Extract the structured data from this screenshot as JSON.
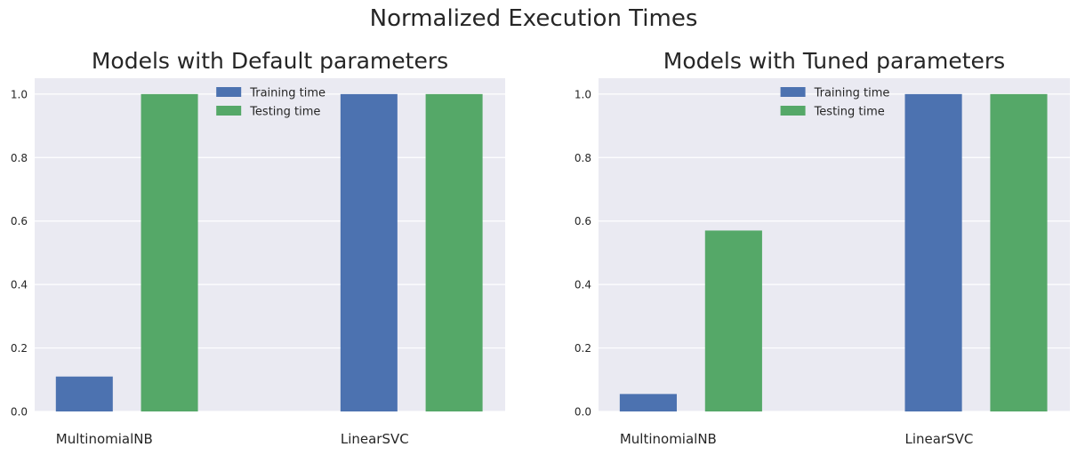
{
  "figure": {
    "title": "Normalized Execution Times"
  },
  "colors": {
    "training": "#4c72b0",
    "testing": "#55a868",
    "plot_bg": "#eaeaf2",
    "grid": "#ffffff",
    "text": "#262626"
  },
  "chart_data": [
    {
      "type": "bar",
      "title": "Models with Default parameters",
      "xlabel": "",
      "ylabel": "",
      "categories": [
        "MultinomialNB",
        "LinearSVC"
      ],
      "series": [
        {
          "name": "Training time",
          "color": "#4c72b0",
          "values": [
            0.11,
            1.0
          ]
        },
        {
          "name": "Testing time",
          "color": "#55a868",
          "values": [
            1.0,
            1.0
          ]
        }
      ],
      "ylim": [
        0,
        1.05
      ],
      "yticks": [
        "0.0",
        "0.2",
        "0.4",
        "0.6",
        "0.8",
        "1.0"
      ],
      "grid": true,
      "legend": "top-center"
    },
    {
      "type": "bar",
      "title": "Models with Tuned parameters",
      "xlabel": "",
      "ylabel": "",
      "categories": [
        "MultinomialNB",
        "LinearSVC"
      ],
      "series": [
        {
          "name": "Training time",
          "color": "#4c72b0",
          "values": [
            0.055,
            1.0
          ]
        },
        {
          "name": "Testing time",
          "color": "#55a868",
          "values": [
            0.57,
            1.0
          ]
        }
      ],
      "ylim": [
        0,
        1.05
      ],
      "yticks": [
        "0.0",
        "0.2",
        "0.4",
        "0.6",
        "0.8",
        "1.0"
      ],
      "grid": true,
      "legend": "top-center"
    }
  ]
}
